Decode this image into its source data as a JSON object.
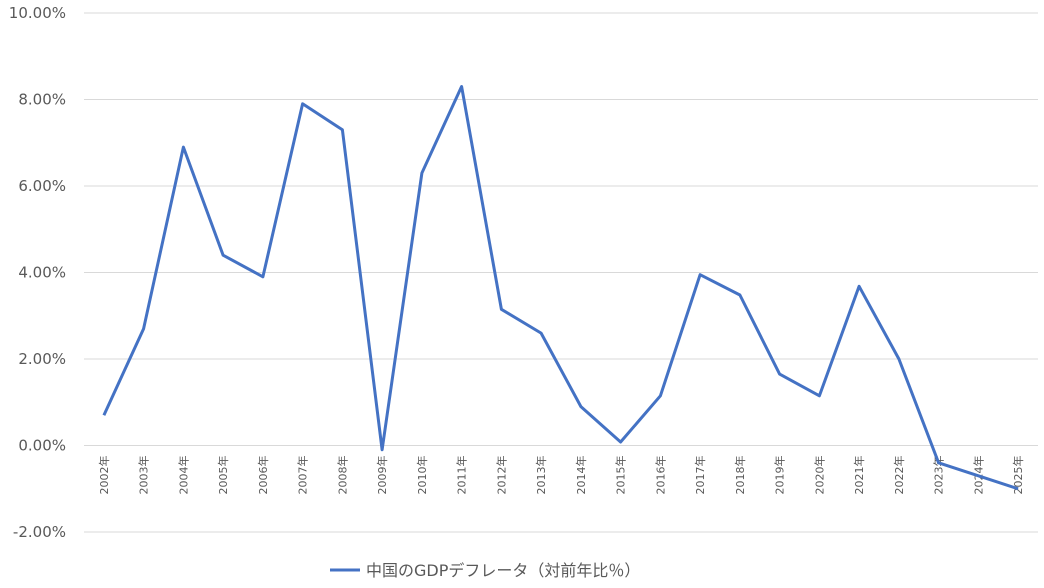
{
  "chart_data": {
    "type": "line",
    "title": "",
    "xlabel": "",
    "ylabel": "",
    "categories": [
      "2002年",
      "2003年",
      "2004年",
      "2005年",
      "2006年",
      "2007年",
      "2008年",
      "2009年",
      "2010年",
      "2011年",
      "2012年",
      "2013年",
      "2014年",
      "2015年",
      "2016年",
      "2017年",
      "2018年",
      "2019年",
      "2020年",
      "2021年",
      "2022年",
      "2023年",
      "2024年",
      "2025年"
    ],
    "series": [
      {
        "name": "中国のGDPデフレータ（対前年比％）",
        "color": "#4472c4",
        "values": [
          0.007,
          0.027,
          0.069,
          0.044,
          0.039,
          0.079,
          0.073,
          -0.001,
          0.063,
          0.083,
          0.0315,
          0.026,
          0.009,
          0.0008,
          0.0115,
          0.0395,
          0.0348,
          0.0165,
          0.0115,
          0.0368,
          0.02,
          -0.004,
          -0.007,
          -0.01
        ]
      }
    ],
    "yticks": [
      "10.00%",
      "8.00%",
      "6.00%",
      "4.00%",
      "2.00%",
      "0.00%",
      "-2.00%"
    ],
    "ytick_values": [
      0.1,
      0.08,
      0.06,
      0.04,
      0.02,
      0.0,
      -0.02
    ],
    "ylim": [
      -0.02,
      0.1
    ],
    "grid": true,
    "legend_position": "bottom"
  }
}
